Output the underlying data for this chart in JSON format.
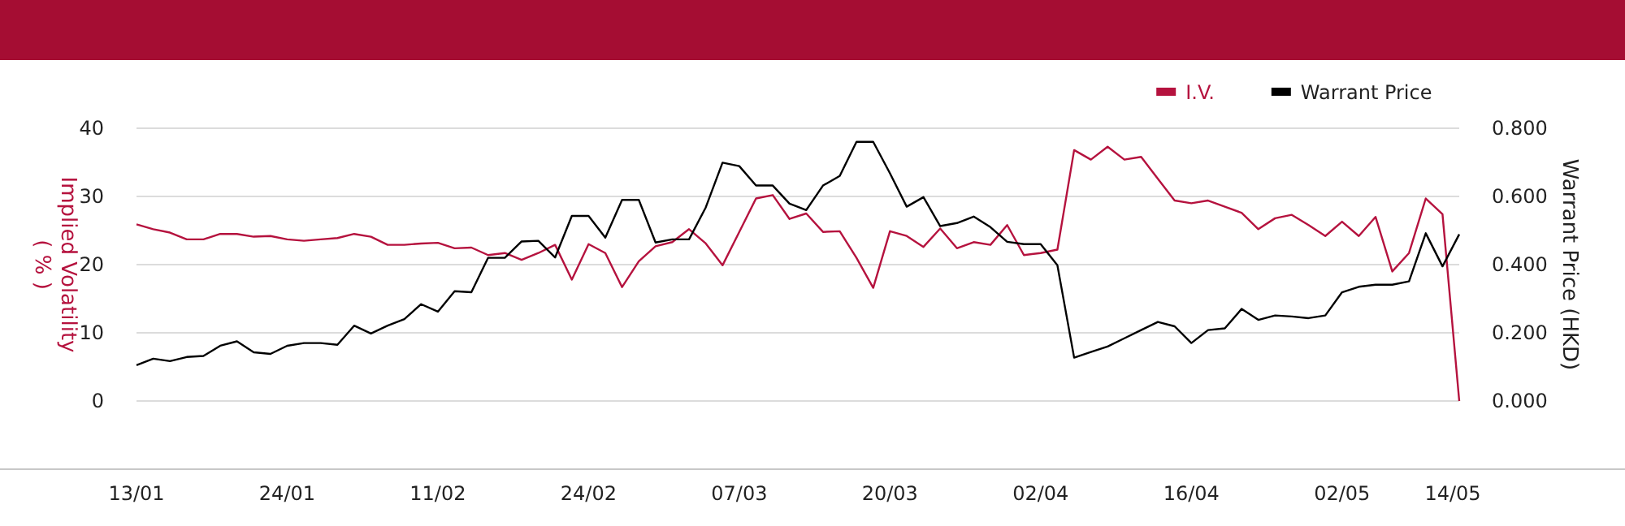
{
  "chart_data": {
    "type": "line",
    "ylabel": "Implied Volatility ( % )",
    "y2label": "Warrant Price (HKD)",
    "categories": [
      "13/01",
      null,
      null,
      null,
      null,
      null,
      null,
      null,
      null,
      "24/01",
      null,
      null,
      null,
      null,
      null,
      null,
      null,
      null,
      "11/02",
      null,
      null,
      null,
      null,
      null,
      null,
      null,
      null,
      "24/02",
      null,
      null,
      null,
      null,
      null,
      null,
      null,
      null,
      "07/03",
      null,
      null,
      null,
      null,
      null,
      null,
      null,
      null,
      "20/03",
      null,
      null,
      null,
      null,
      null,
      null,
      null,
      null,
      "02/04",
      null,
      null,
      null,
      null,
      null,
      null,
      null,
      null,
      "16/04",
      null,
      null,
      null,
      null,
      null,
      null,
      null,
      null,
      "02/05",
      null,
      null,
      null,
      null,
      null,
      null,
      "14/05"
    ],
    "series": [
      {
        "name": "I.V.",
        "color": "#b5123e",
        "values": [
          25.9,
          25.2,
          24.7,
          23.7,
          23.7,
          24.5,
          24.5,
          24.1,
          24.2,
          23.7,
          23.5,
          23.7,
          23.9,
          24.5,
          24.1,
          22.9,
          22.9,
          23.1,
          23.2,
          22.4,
          22.5,
          21.4,
          21.7,
          20.7,
          21.7,
          22.9,
          17.8,
          23.0,
          21.7,
          16.7,
          20.5,
          22.7,
          23.3,
          25.2,
          23.1,
          19.9,
          24.8,
          29.7,
          30.2,
          26.7,
          27.5,
          24.8,
          24.9,
          21.0,
          16.6,
          24.9,
          24.2,
          22.6,
          25.3,
          22.4,
          23.3,
          22.9,
          25.8,
          21.4,
          21.7,
          22.2,
          36.8,
          35.4,
          37.3,
          35.4,
          35.8,
          32.6,
          29.4,
          29.0,
          29.4,
          28.5,
          27.6,
          25.2,
          26.8,
          27.3,
          25.8,
          24.2,
          26.3,
          24.2,
          27.0,
          19.0,
          21.7,
          29.7,
          27.4,
          0
        ]
      },
      {
        "name": "Warrant Price",
        "color": "#000000",
        "axis": "y2",
        "values": [
          0.105,
          0.124,
          0.117,
          0.129,
          0.132,
          0.162,
          0.175,
          0.143,
          0.138,
          0.162,
          0.17,
          0.17,
          0.165,
          0.221,
          0.198,
          0.221,
          0.24,
          0.284,
          0.262,
          0.322,
          0.319,
          0.42,
          0.42,
          0.468,
          0.47,
          0.421,
          0.543,
          0.543,
          0.479,
          0.59,
          0.59,
          0.465,
          0.474,
          0.474,
          0.568,
          0.699,
          0.689,
          0.632,
          0.632,
          0.579,
          0.56,
          0.632,
          0.66,
          0.76,
          0.76,
          0.668,
          0.57,
          0.598,
          0.513,
          0.522,
          0.541,
          0.51,
          0.467,
          0.46,
          0.46,
          0.398,
          0.127,
          0.144,
          0.16,
          0.184,
          0.208,
          0.232,
          0.219,
          0.17,
          0.208,
          0.213,
          0.27,
          0.238,
          0.251,
          0.248,
          0.243,
          0.251,
          0.319,
          0.335,
          0.341,
          0.341,
          0.351,
          0.492,
          0.395,
          0.489
        ]
      }
    ],
    "ylim": [
      -10,
      40
    ],
    "yticks": [
      0,
      10,
      20,
      30,
      40
    ],
    "y2lim": [
      -0.2,
      0.8
    ],
    "y2ticks": [
      {
        "value": 0,
        "label": "0.000"
      },
      {
        "value": 0.2,
        "label": "0.200"
      },
      {
        "value": 0.4,
        "label": "0.400"
      },
      {
        "value": 0.6,
        "label": "0.600"
      },
      {
        "value": 0.8,
        "label": "0.800"
      }
    ],
    "grid": "y",
    "legend": "top right",
    "marker": "none",
    "line_style": "solid"
  }
}
